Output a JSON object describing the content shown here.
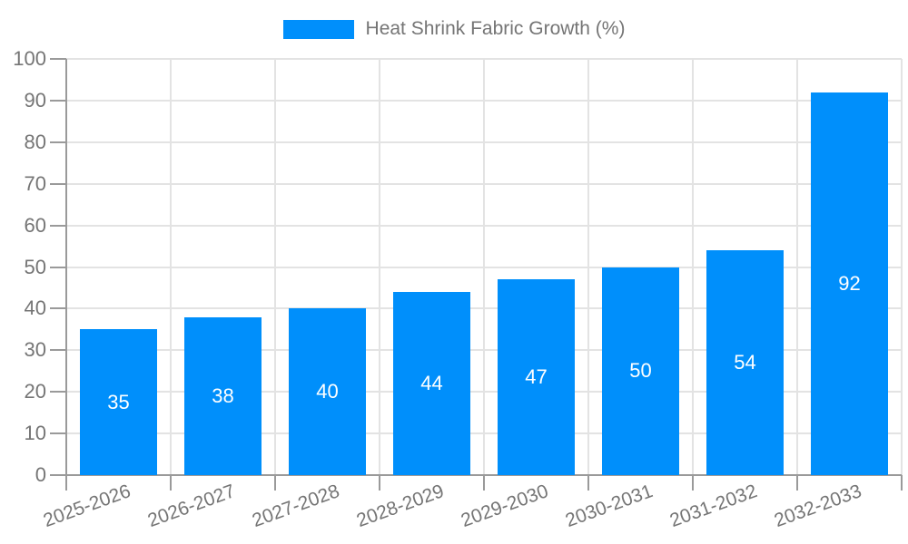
{
  "legend": {
    "label": "Heat Shrink Fabric Growth (%)"
  },
  "colors": {
    "bar": "#008FFB",
    "grid": "#e3e3e3",
    "axis": "#9a9a9a",
    "tick_text": "#757575",
    "value_text": "#ffffff",
    "background": "#ffffff"
  },
  "chart_data": {
    "type": "bar",
    "title": "Heat Shrink Fabric Growth (%)",
    "categories": [
      "2025-2026",
      "2026-2027",
      "2027-2028",
      "2028-2029",
      "2029-2030",
      "2030-2031",
      "2031-2032",
      "2032-2033"
    ],
    "values": [
      35,
      38,
      40,
      44,
      47,
      50,
      54,
      92
    ],
    "value_labels": [
      "35",
      "38",
      "40",
      "44",
      "47",
      "50",
      "54",
      "92"
    ],
    "xlabel": "",
    "ylabel": "",
    "ylim": [
      0,
      100
    ],
    "ytick_step": 10,
    "ytick_labels": [
      "0",
      "10",
      "20",
      "30",
      "40",
      "50",
      "60",
      "70",
      "80",
      "90",
      "100"
    ],
    "grid": "horizontal-and-vertical",
    "legend_position": "top-center",
    "value_label_position": "inside-center",
    "xtick_rotation_deg": -20
  }
}
